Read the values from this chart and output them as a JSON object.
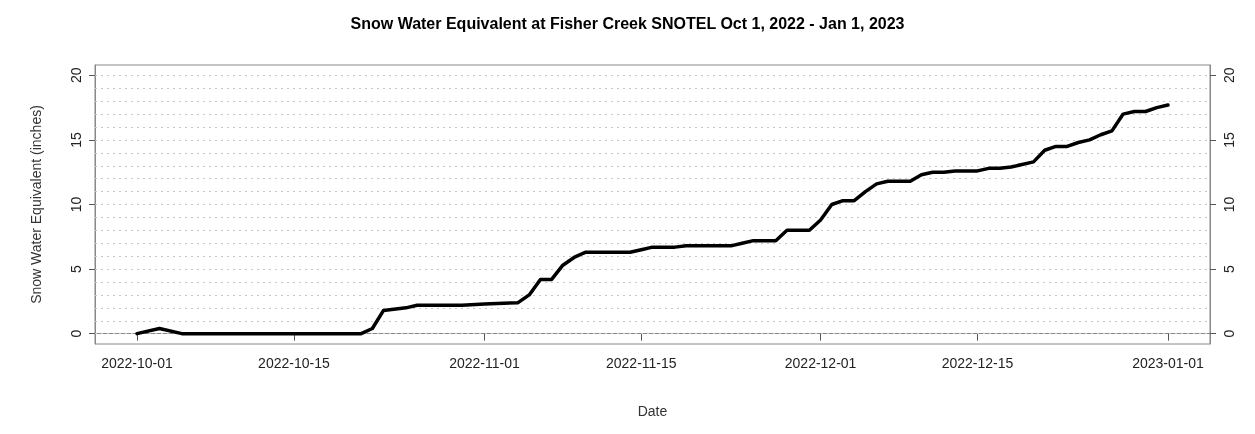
{
  "chart_data": {
    "type": "line",
    "title": "Snow Water Equivalent at Fisher Creek SNOTEL Oct 1, 2022 - Jan 1, 2023",
    "xlabel": "Date",
    "ylabel": "Snow Water Equivalent (inches)",
    "x": [
      "2022-10-01",
      "2022-10-03",
      "2022-10-05",
      "2022-10-21",
      "2022-10-22",
      "2022-10-23",
      "2022-10-25",
      "2022-10-26",
      "2022-10-30",
      "2022-11-01",
      "2022-11-04",
      "2022-11-05",
      "2022-11-06",
      "2022-11-07",
      "2022-11-08",
      "2022-11-09",
      "2022-11-10",
      "2022-11-14",
      "2022-11-15",
      "2022-11-16",
      "2022-11-18",
      "2022-11-19",
      "2022-11-23",
      "2022-11-24",
      "2022-11-25",
      "2022-11-27",
      "2022-11-28",
      "2022-11-30",
      "2022-12-01",
      "2022-12-02",
      "2022-12-03",
      "2022-12-04",
      "2022-12-05",
      "2022-12-06",
      "2022-12-07",
      "2022-12-09",
      "2022-12-10",
      "2022-12-11",
      "2022-12-12",
      "2022-12-13",
      "2022-12-15",
      "2022-12-16",
      "2022-12-17",
      "2022-12-18",
      "2022-12-20",
      "2022-12-21",
      "2022-12-22",
      "2022-12-23",
      "2022-12-24",
      "2022-12-25",
      "2022-12-26",
      "2022-12-27",
      "2022-12-28",
      "2022-12-29",
      "2022-12-30",
      "2022-12-31",
      "2023-01-01"
    ],
    "series": [
      {
        "color": "#000000",
        "values": [
          0,
          0.4,
          0,
          0,
          0.4,
          1.8,
          2.0,
          2.2,
          2.2,
          2.3,
          2.4,
          3.0,
          4.2,
          4.2,
          5.3,
          5.9,
          6.3,
          6.3,
          6.5,
          6.7,
          6.7,
          6.8,
          6.8,
          7.0,
          7.2,
          7.2,
          8.0,
          8.0,
          8.8,
          10.0,
          10.3,
          10.3,
          11.0,
          11.6,
          11.8,
          11.8,
          12.3,
          12.5,
          12.5,
          12.6,
          12.6,
          12.8,
          12.8,
          12.9,
          13.3,
          14.2,
          14.5,
          14.5,
          14.8,
          15.0,
          15.4,
          15.7,
          17.0,
          17.2,
          17.2,
          17.5,
          17.7
        ]
      }
    ],
    "xlim": [
      "2022-09-27T06:00",
      "2023-01-04T18:00"
    ],
    "xticks": [
      "2022-10-01",
      "2022-10-15",
      "2022-11-01",
      "2022-11-15",
      "2022-12-01",
      "2022-12-15",
      "2023-01-01"
    ],
    "ylim": [
      -0.8,
      20.8
    ],
    "yticks": [
      0,
      {
        "value": 1,
        "label": null
      },
      {
        "value": 2,
        "label": null
      },
      {
        "value": 3,
        "label": null
      },
      {
        "value": 4,
        "label": null
      },
      5,
      {
        "value": 6,
        "label": null
      },
      {
        "value": 7,
        "label": null
      },
      {
        "value": 8,
        "label": null
      },
      {
        "value": 9,
        "label": null
      },
      10,
      {
        "value": 11,
        "label": null
      },
      {
        "value": 12,
        "label": null
      },
      {
        "value": 13,
        "label": null
      },
      {
        "value": 14,
        "label": null
      },
      15,
      {
        "value": 16,
        "label": null
      },
      {
        "value": 17,
        "label": null
      },
      {
        "value": 18,
        "label": null
      },
      {
        "value": 19,
        "label": null
      },
      20
    ],
    "y2lim": [
      -0.8,
      20.8
    ],
    "y2ticks": [
      0,
      5,
      10,
      15,
      20
    ],
    "grid": "y",
    "marker": "none",
    "line_style": "solid"
  }
}
